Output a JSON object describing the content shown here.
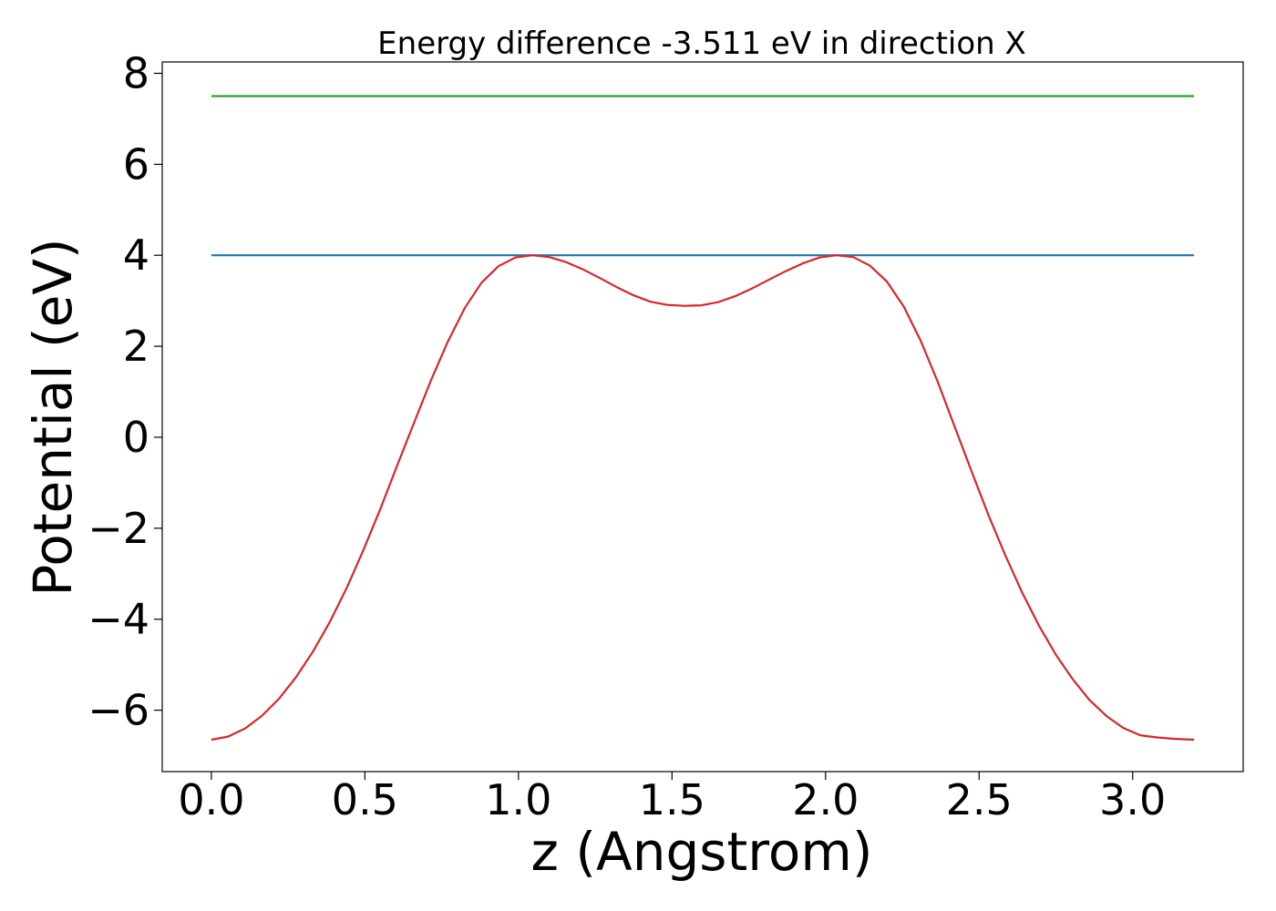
{
  "chart_data": {
    "type": "line",
    "title": "Energy difference -3.511 eV in direction X",
    "xlabel": "z (Angstrom)",
    "ylabel": "Potential (eV)",
    "xlim": [
      -0.16,
      3.36
    ],
    "ylim": [
      -7.35,
      8.25
    ],
    "xticks": [
      {
        "value": 0.0,
        "label": "0.0"
      },
      {
        "value": 0.5,
        "label": "0.5"
      },
      {
        "value": 1.0,
        "label": "1.0"
      },
      {
        "value": 1.5,
        "label": "1.5"
      },
      {
        "value": 2.0,
        "label": "2.0"
      },
      {
        "value": 2.5,
        "label": "2.5"
      },
      {
        "value": 3.0,
        "label": "3.0"
      }
    ],
    "yticks": [
      {
        "value": -6,
        "label": "−6"
      },
      {
        "value": -4,
        "label": "−4"
      },
      {
        "value": -2,
        "label": "−2"
      },
      {
        "value": 0,
        "label": "0"
      },
      {
        "value": 2,
        "label": "2"
      },
      {
        "value": 4,
        "label": "4"
      },
      {
        "value": 6,
        "label": "6"
      },
      {
        "value": 8,
        "label": "8"
      }
    ],
    "grid": false,
    "legend": "none",
    "series": [
      {
        "color": "#2ca02c",
        "x": [
          0.0,
          3.2
        ],
        "y": [
          7.5,
          7.5
        ]
      },
      {
        "color": "#1f77b4",
        "x": [
          0.0,
          3.2
        ],
        "y": [
          4.0,
          4.0
        ]
      },
      {
        "color": "#d62728",
        "x": [
          0.0,
          0.055,
          0.11,
          0.165,
          0.22,
          0.275,
          0.33,
          0.385,
          0.44,
          0.495,
          0.55,
          0.605,
          0.66,
          0.715,
          0.77,
          0.825,
          0.88,
          0.935,
          0.99,
          1.045,
          1.1,
          1.155,
          1.21,
          1.265,
          1.32,
          1.375,
          1.43,
          1.485,
          1.54,
          1.595,
          1.65,
          1.705,
          1.76,
          1.815,
          1.87,
          1.925,
          1.98,
          2.035,
          2.09,
          2.145,
          2.2,
          2.255,
          2.31,
          2.365,
          2.42,
          2.475,
          2.53,
          2.585,
          2.64,
          2.695,
          2.75,
          2.805,
          2.86,
          2.915,
          2.97,
          3.025,
          3.08,
          3.135,
          3.2
        ],
        "y": [
          -6.65,
          -6.58,
          -6.4,
          -6.12,
          -5.75,
          -5.28,
          -4.72,
          -4.07,
          -3.32,
          -2.48,
          -1.58,
          -0.62,
          0.32,
          1.25,
          2.1,
          2.84,
          3.4,
          3.76,
          3.95,
          4.0,
          3.96,
          3.85,
          3.69,
          3.5,
          3.3,
          3.12,
          2.98,
          2.91,
          2.89,
          2.9,
          2.97,
          3.1,
          3.27,
          3.46,
          3.65,
          3.82,
          3.95,
          4.0,
          3.96,
          3.77,
          3.42,
          2.87,
          2.12,
          1.22,
          0.24,
          -0.74,
          -1.7,
          -2.59,
          -3.41,
          -4.14,
          -4.78,
          -5.32,
          -5.78,
          -6.13,
          -6.39,
          -6.55,
          -6.6,
          -6.63,
          -6.65
        ]
      }
    ]
  }
}
